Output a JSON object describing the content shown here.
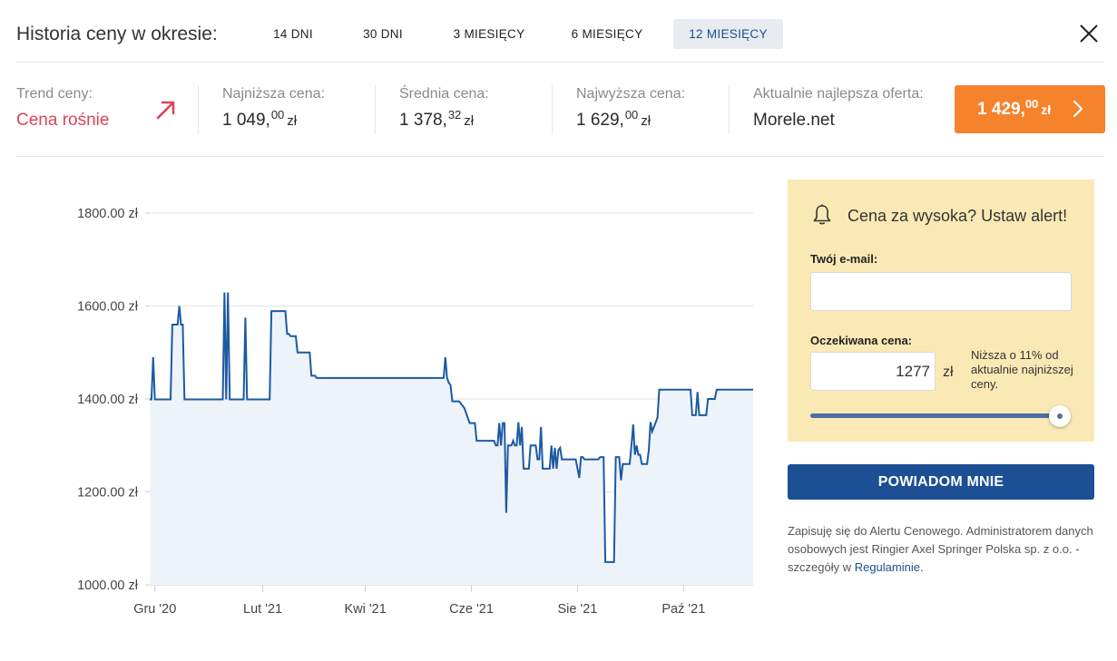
{
  "header": {
    "title": "Historia ceny w okresie:",
    "tabs": [
      {
        "label": "14 DNI",
        "active": false
      },
      {
        "label": "30 DNI",
        "active": false
      },
      {
        "label": "3 MIESIĘCY",
        "active": false
      },
      {
        "label": "6 MIESIĘCY",
        "active": false
      },
      {
        "label": "12 MIESIĘCY",
        "active": true
      }
    ],
    "close_icon": "close-x-icon"
  },
  "stats": {
    "trend": {
      "label": "Trend ceny:",
      "value": "Cena rośnie",
      "icon": "arrow-up-right-icon",
      "color": "#d9455a"
    },
    "lowest": {
      "label": "Najniższa cena:",
      "whole": "1 049,",
      "cents": "00",
      "currency": "zł"
    },
    "average": {
      "label": "Średnia cena:",
      "whole": "1 378,",
      "cents": "32",
      "currency": "zł"
    },
    "highest": {
      "label": "Najwyższa cena:",
      "whole": "1 629,",
      "cents": "00",
      "currency": "zł"
    },
    "best_offer": {
      "label": "Aktualnie najlepsza oferta:",
      "shop": "Morele.net"
    },
    "offer_button": {
      "whole": "1 429,",
      "cents": "00",
      "currency": "zł",
      "color": "#f5832b"
    }
  },
  "chart_data": {
    "type": "area",
    "title": "",
    "xlabel": "",
    "ylabel": "",
    "ylim": [
      1000,
      1800
    ],
    "y_ticks": [
      "1000.00 zł",
      "1200.00 zł",
      "1400.00 zł",
      "1600.00 zł",
      "1800.00 zł"
    ],
    "y_tick_values": [
      1000,
      1200,
      1400,
      1600,
      1800
    ],
    "x_ticks": [
      {
        "date": "2020-12-01",
        "label": "Gru '20"
      },
      {
        "date": "2021-02-01",
        "label": "Lut '21"
      },
      {
        "date": "2021-04-01",
        "label": "Kwi '21"
      },
      {
        "date": "2021-06-01",
        "label": "Cze '21"
      },
      {
        "date": "2021-08-01",
        "label": "Sie '21"
      },
      {
        "date": "2021-10-01",
        "label": "Paź '21"
      }
    ],
    "xlim": [
      "2020-11-28",
      "2021-11-10"
    ],
    "grid": true,
    "line_color": "#1c5aa3",
    "fill_color": "#eef3f9",
    "series": [
      {
        "points": [
          [
            "2020-11-28",
            1399
          ],
          [
            "2020-11-29",
            1399
          ],
          [
            "2020-11-30",
            1490
          ],
          [
            "2020-12-01",
            1399
          ],
          [
            "2020-12-10",
            1399
          ],
          [
            "2020-12-11",
            1560
          ],
          [
            "2020-12-14",
            1560
          ],
          [
            "2020-12-15",
            1600
          ],
          [
            "2020-12-16",
            1560
          ],
          [
            "2020-12-17",
            1560
          ],
          [
            "2020-12-18",
            1399
          ],
          [
            "2021-01-09",
            1399
          ],
          [
            "2021-01-10",
            1629
          ],
          [
            "2021-01-11",
            1399
          ],
          [
            "2021-01-12",
            1629
          ],
          [
            "2021-01-13",
            1399
          ],
          [
            "2021-01-21",
            1399
          ],
          [
            "2021-01-22",
            1575
          ],
          [
            "2021-01-23",
            1399
          ],
          [
            "2021-02-05",
            1399
          ],
          [
            "2021-02-06",
            1589
          ],
          [
            "2021-02-14",
            1589
          ],
          [
            "2021-02-15",
            1540
          ],
          [
            "2021-02-16",
            1540
          ],
          [
            "2021-02-17",
            1535
          ],
          [
            "2021-02-20",
            1535
          ],
          [
            "2021-02-21",
            1500
          ],
          [
            "2021-02-28",
            1500
          ],
          [
            "2021-03-01",
            1450
          ],
          [
            "2021-03-03",
            1450
          ],
          [
            "2021-03-04",
            1445
          ],
          [
            "2021-05-16",
            1445
          ],
          [
            "2021-05-17",
            1490
          ],
          [
            "2021-05-18",
            1445
          ],
          [
            "2021-05-19",
            1435
          ],
          [
            "2021-05-20",
            1430
          ],
          [
            "2021-05-21",
            1395
          ],
          [
            "2021-05-25",
            1395
          ],
          [
            "2021-05-26",
            1390
          ],
          [
            "2021-05-28",
            1380
          ],
          [
            "2021-05-31",
            1348
          ],
          [
            "2021-06-03",
            1348
          ],
          [
            "2021-06-04",
            1310
          ],
          [
            "2021-06-11",
            1310
          ],
          [
            "2021-06-14",
            1310
          ],
          [
            "2021-06-15",
            1300
          ],
          [
            "2021-06-16",
            1300
          ],
          [
            "2021-06-17",
            1348
          ],
          [
            "2021-06-18",
            1300
          ],
          [
            "2021-06-19",
            1348
          ],
          [
            "2021-06-20",
            1348
          ],
          [
            "2021-06-21",
            1155
          ],
          [
            "2021-06-22",
            1300
          ],
          [
            "2021-06-24",
            1300
          ],
          [
            "2021-06-25",
            1310
          ],
          [
            "2021-06-26",
            1300
          ],
          [
            "2021-06-27",
            1300
          ],
          [
            "2021-06-28",
            1350
          ],
          [
            "2021-06-29",
            1300
          ],
          [
            "2021-06-30",
            1340
          ],
          [
            "2021-07-01",
            1250
          ],
          [
            "2021-07-04",
            1250
          ],
          [
            "2021-07-05",
            1300
          ],
          [
            "2021-07-08",
            1300
          ],
          [
            "2021-07-09",
            1270
          ],
          [
            "2021-07-10",
            1270
          ],
          [
            "2021-07-11",
            1340
          ],
          [
            "2021-07-12",
            1250
          ],
          [
            "2021-07-16",
            1250
          ],
          [
            "2021-07-17",
            1300
          ],
          [
            "2021-07-18",
            1250
          ],
          [
            "2021-07-19",
            1295
          ],
          [
            "2021-07-20",
            1250
          ],
          [
            "2021-07-21",
            1290
          ],
          [
            "2021-07-22",
            1295
          ],
          [
            "2021-07-23",
            1270
          ],
          [
            "2021-07-31",
            1270
          ],
          [
            "2021-08-02",
            1230
          ],
          [
            "2021-08-03",
            1275
          ],
          [
            "2021-08-04",
            1275
          ],
          [
            "2021-08-05",
            1270
          ],
          [
            "2021-08-13",
            1270
          ],
          [
            "2021-08-14",
            1275
          ],
          [
            "2021-08-16",
            1275
          ],
          [
            "2021-08-17",
            1049
          ],
          [
            "2021-08-22",
            1049
          ],
          [
            "2021-08-23",
            1275
          ],
          [
            "2021-08-25",
            1275
          ],
          [
            "2021-08-26",
            1225
          ],
          [
            "2021-08-27",
            1260
          ],
          [
            "2021-08-31",
            1260
          ],
          [
            "2021-09-01",
            1300
          ],
          [
            "2021-09-02",
            1345
          ],
          [
            "2021-09-03",
            1280
          ],
          [
            "2021-09-04",
            1300
          ],
          [
            "2021-09-05",
            1280
          ],
          [
            "2021-09-06",
            1280
          ],
          [
            "2021-09-07",
            1260
          ],
          [
            "2021-09-10",
            1260
          ],
          [
            "2021-09-11",
            1290
          ],
          [
            "2021-09-12",
            1350
          ],
          [
            "2021-09-13",
            1330
          ],
          [
            "2021-09-15",
            1350
          ],
          [
            "2021-09-16",
            1360
          ],
          [
            "2021-09-17",
            1420
          ],
          [
            "2021-09-24",
            1420
          ],
          [
            "2021-09-25",
            1420
          ],
          [
            "2021-10-05",
            1420
          ],
          [
            "2021-10-06",
            1365
          ],
          [
            "2021-10-08",
            1365
          ],
          [
            "2021-10-09",
            1415
          ],
          [
            "2021-10-10",
            1365
          ],
          [
            "2021-10-14",
            1365
          ],
          [
            "2021-10-15",
            1400
          ],
          [
            "2021-10-19",
            1400
          ],
          [
            "2021-10-20",
            1420
          ],
          [
            "2021-10-24",
            1420
          ]
        ]
      }
    ]
  },
  "alert": {
    "bell_icon": "bell-icon",
    "title": "Cena za wysoka? Ustaw alert!",
    "email_label": "Twój e-mail:",
    "email_value": "",
    "price_label": "Oczekiwana cena:",
    "price_value": "1277",
    "price_unit": "zł",
    "hint": "Niższa o 11% od aktualnie najniższej ceny.",
    "slider_value": 1.0,
    "background": "#fbe9b5"
  },
  "notify_button": {
    "label": "POWIADOM MNIE",
    "color": "#1c4f93"
  },
  "disclaimer": {
    "text": "Zapisuję się do Alertu Cenowego. Administratorem danych osobowych jest Ringier Axel Springer Polska sp. z o.o. - szczegóły w ",
    "link": "Regulaminie",
    "end": "."
  }
}
